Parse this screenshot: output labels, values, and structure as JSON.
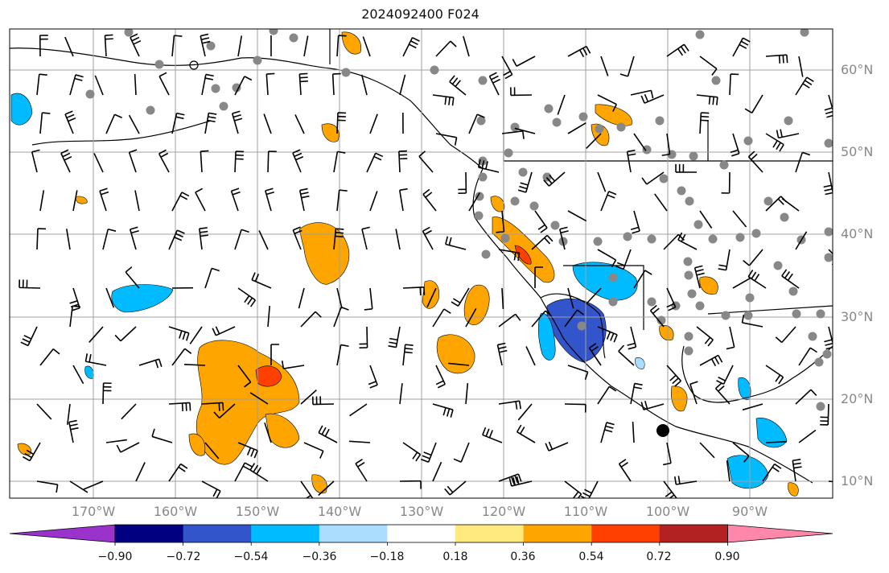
{
  "title": "2024092400 F024",
  "lat_labels": [
    "60°N",
    "50°N",
    "40°N",
    "30°N",
    "20°N",
    "10°N"
  ],
  "lon_labels": [
    "170°W",
    "160°W",
    "150°W",
    "140°W",
    "130°W",
    "120°W",
    "110°W",
    "100°W",
    "90°W"
  ],
  "colorbar": {
    "tick_labels": [
      "−0.90",
      "−0.72",
      "−0.54",
      "−0.36",
      "−0.18",
      "0.18",
      "0.36",
      "0.54",
      "0.72",
      "0.90"
    ],
    "colors": [
      "#9933cc",
      "#000080",
      "#3355cc",
      "#00bbff",
      "#aaddff",
      "#ffffff",
      "#ffea80",
      "#ffa500",
      "#ff4000",
      "#b22222",
      "#ff88aa"
    ]
  },
  "colors": {
    "grid": "#a0a0a0",
    "coast": "#000000",
    "station": "#888888",
    "barb": "#000000"
  }
}
